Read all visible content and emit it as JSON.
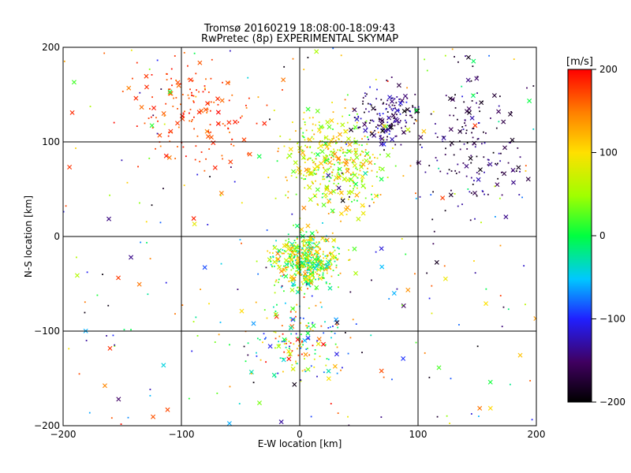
{
  "chart_data": {
    "type": "scatter",
    "title": "Tromsø 20160219 18:08:00-18:09:43",
    "subtitle": "RwPretec (8p) EXPERIMENTAL SKYMAP",
    "xlabel": "E-W location [km]",
    "ylabel": "N-S location [km]",
    "xlim": [
      -200,
      200
    ],
    "ylim": [
      -200,
      200
    ],
    "xticks": [
      "−200",
      "−100",
      "0",
      "100",
      "200"
    ],
    "yticks": [
      "200",
      "100",
      "0",
      "−100",
      "−200"
    ],
    "grid_x": [
      -100,
      0,
      100
    ],
    "grid_y": [
      -100,
      0,
      100
    ],
    "grid": true,
    "colorbar": {
      "label": "[m/s]",
      "min": -200,
      "max": 200,
      "ticks": [
        "200",
        "100",
        "0",
        "−100",
        "−200"
      ],
      "colormap": "rainbow (black-purple-blue-cyan-green-yellow-orange-red)"
    },
    "markers": {
      "cross": "detection (x marker)",
      "dot": "detection (small dot)"
    },
    "clusters": [
      {
        "region": "central",
        "x_range": [
          -30,
          40
        ],
        "y_range": [
          -60,
          10
        ],
        "velocity_range": [
          -50,
          150
        ],
        "density": "very high"
      },
      {
        "region": "north-central",
        "x_range": [
          -20,
          80
        ],
        "y_range": [
          20,
          140
        ],
        "velocity_range": [
          0,
          150
        ],
        "density": "high"
      },
      {
        "region": "south",
        "x_range": [
          -40,
          40
        ],
        "y_range": [
          -160,
          -60
        ],
        "velocity_range": [
          -120,
          200
        ],
        "density": "medium"
      },
      {
        "region": "north-west",
        "x_range": [
          -150,
          -20
        ],
        "y_range": [
          60,
          200
        ],
        "velocity_range": [
          150,
          200
        ],
        "density": "medium"
      },
      {
        "region": "north-east",
        "x_range": [
          100,
          200
        ],
        "y_range": [
          0,
          200
        ],
        "velocity_range": [
          -200,
          -120
        ],
        "density": "medium"
      },
      {
        "region": "north-east-upper",
        "x_range": [
          40,
          110
        ],
        "y_range": [
          90,
          160
        ],
        "velocity_range": [
          -200,
          -100
        ],
        "density": "medium"
      },
      {
        "region": "scattered",
        "x_range": [
          -200,
          200
        ],
        "y_range": [
          -200,
          200
        ],
        "velocity_range": [
          -200,
          200
        ],
        "density": "low"
      }
    ]
  }
}
